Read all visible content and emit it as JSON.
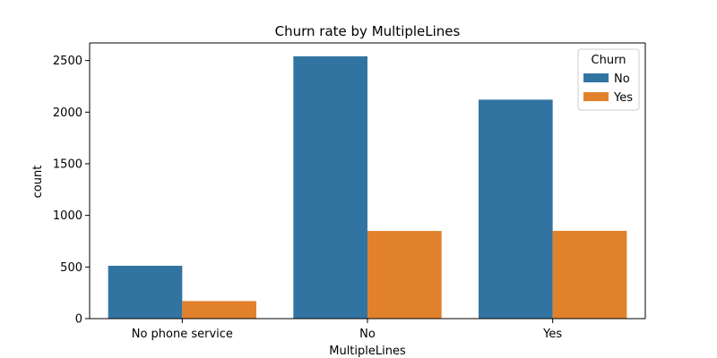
{
  "chart_data": {
    "type": "bar",
    "title": "Churn rate by MultipleLines",
    "xlabel": "MultipleLines",
    "ylabel": "count",
    "categories": [
      "No phone service",
      "No",
      "Yes"
    ],
    "series": [
      {
        "name": "No",
        "values": [
          512,
          2541,
          2121
        ],
        "color": "#3274a1"
      },
      {
        "name": "Yes",
        "values": [
          170,
          849,
          850
        ],
        "color": "#e1812c"
      }
    ],
    "ylim": [
      0,
      2670
    ],
    "yticks": [
      0,
      500,
      1000,
      1500,
      2000,
      2500
    ],
    "grid": false,
    "legend": {
      "title": "Churn",
      "placement": "top-right"
    }
  }
}
